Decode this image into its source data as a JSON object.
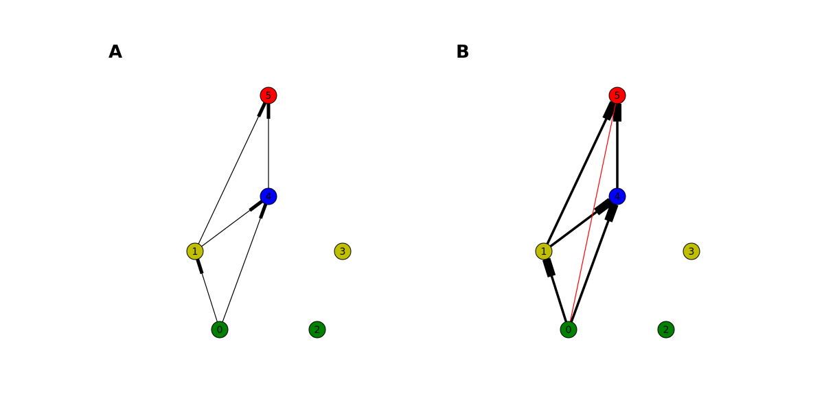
{
  "panels": [
    {
      "label": "A",
      "nodes": [
        {
          "id": "0",
          "color": "#008000"
        },
        {
          "id": "1",
          "color": "#bfbf00"
        },
        {
          "id": "2",
          "color": "#008000"
        },
        {
          "id": "3",
          "color": "#bfbf00"
        },
        {
          "id": "4",
          "color": "#0000ff"
        },
        {
          "id": "5",
          "color": "#ff0000"
        }
      ],
      "edges": [
        {
          "from": "0",
          "to": "1",
          "weight": "thin",
          "color": "#000000"
        },
        {
          "from": "0",
          "to": "4",
          "weight": "thin",
          "color": "#000000"
        },
        {
          "from": "1",
          "to": "4",
          "weight": "thin",
          "color": "#000000"
        },
        {
          "from": "1",
          "to": "5",
          "weight": "thin",
          "color": "#000000"
        },
        {
          "from": "4",
          "to": "5",
          "weight": "thin",
          "color": "#000000"
        }
      ]
    },
    {
      "label": "B",
      "nodes": [
        {
          "id": "0",
          "color": "#008000"
        },
        {
          "id": "1",
          "color": "#bfbf00"
        },
        {
          "id": "2",
          "color": "#008000"
        },
        {
          "id": "3",
          "color": "#bfbf00"
        },
        {
          "id": "4",
          "color": "#0000ff"
        },
        {
          "id": "5",
          "color": "#ff0000"
        }
      ],
      "edges": [
        {
          "from": "0",
          "to": "1",
          "weight": "thick",
          "color": "#000000"
        },
        {
          "from": "0",
          "to": "4",
          "weight": "thick",
          "color": "#000000"
        },
        {
          "from": "1",
          "to": "4",
          "weight": "thick",
          "color": "#000000"
        },
        {
          "from": "1",
          "to": "5",
          "weight": "thick",
          "color": "#000000"
        },
        {
          "from": "4",
          "to": "5",
          "weight": "thick",
          "color": "#000000"
        },
        {
          "from": "0",
          "to": "5",
          "weight": "thin",
          "color": "#ff0000"
        }
      ]
    }
  ]
}
